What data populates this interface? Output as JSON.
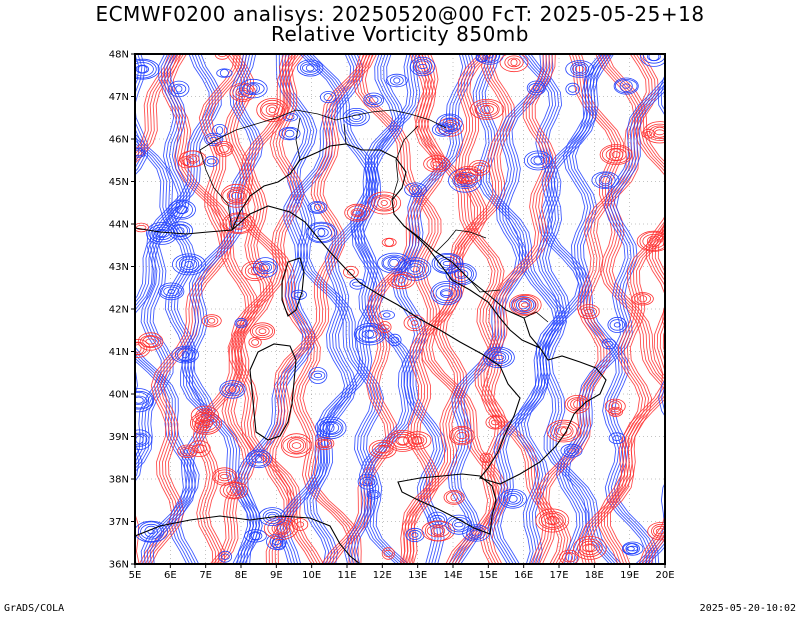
{
  "title_line1": "ECMWF0200 analisys: 20250520@00 FcT: 2025-05-25+18",
  "title_line2": "Relative Vorticity 850mb",
  "footer_left": "GrADS/COLA",
  "footer_right": "2025-05-20-10:02",
  "map": {
    "lon_range": [
      5,
      20
    ],
    "lat_range": [
      36,
      48
    ],
    "lon_ticks": [
      "5E",
      "6E",
      "7E",
      "8E",
      "9E",
      "10E",
      "11E",
      "12E",
      "13E",
      "14E",
      "15E",
      "16E",
      "17E",
      "18E",
      "19E",
      "20E"
    ],
    "lat_ticks": [
      "36N",
      "37N",
      "38N",
      "39N",
      "40N",
      "41N",
      "42N",
      "43N",
      "44N",
      "45N",
      "46N",
      "47N",
      "48N"
    ],
    "field": "relative vorticity",
    "positive_color": "#ff3030",
    "negative_color": "#2040ff",
    "coastline_color": "#000000",
    "grid": "dotted"
  }
}
